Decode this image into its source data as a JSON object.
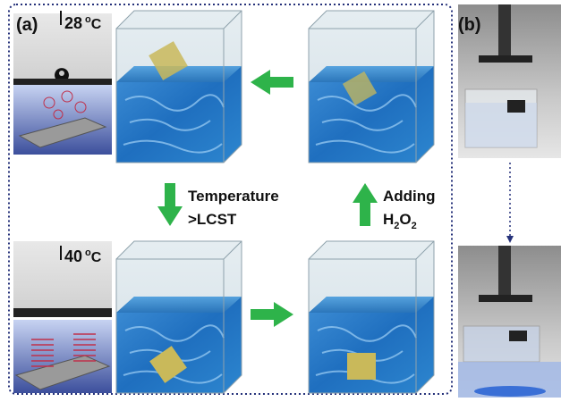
{
  "panel_a": {
    "label": "(a)",
    "temp_top": {
      "value": "28",
      "sup": "o",
      "unit": "C"
    },
    "temp_bottom": {
      "value": "40",
      "sup": "o",
      "unit": "C"
    },
    "step_down": {
      "line1": "Temperature",
      "line2": ">LCST"
    },
    "step_up": {
      "line1": "Adding",
      "formula": [
        "H",
        "2",
        "O",
        "2"
      ]
    }
  },
  "panel_b": {
    "label": "(b)"
  }
}
